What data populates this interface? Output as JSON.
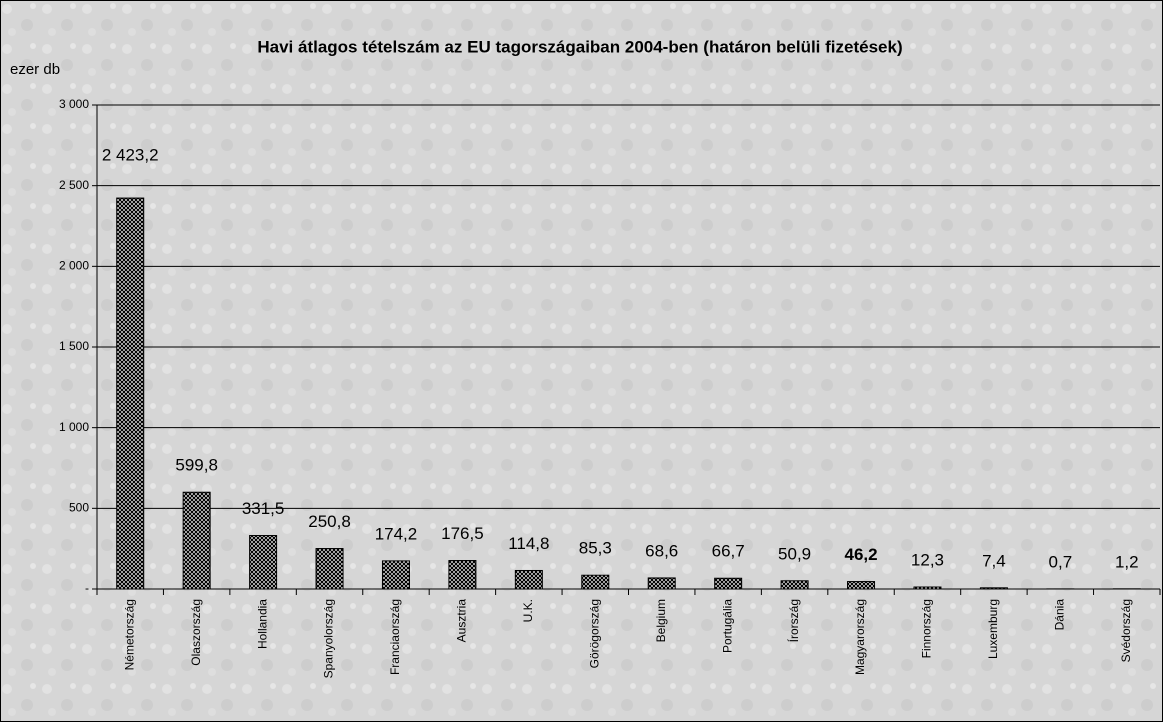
{
  "chart_data": {
    "type": "bar",
    "title": "Havi átlagos tételszám az EU tagországaiban 2004-ben (határon belüli fizetések)",
    "y_label": "ezer db",
    "categories": [
      "Németország",
      "Olaszország",
      "Hollandia",
      "Spanyolország",
      "Franciaország",
      "Ausztria",
      "U.K.",
      "Görögország",
      "Belgium",
      "Portugália",
      "Írország",
      "Magyarország",
      "Finnország",
      "Luxemburg",
      "Dánia",
      "Svédország"
    ],
    "values": [
      2423.2,
      599.8,
      331.5,
      250.8,
      174.2,
      176.5,
      114.8,
      85.3,
      68.6,
      66.7,
      50.9,
      46.2,
      12.3,
      7.4,
      0.7,
      1.2
    ],
    "value_labels": [
      "2 423,2",
      "599,8",
      "331,5",
      "250,8",
      "174,2",
      "176,5",
      "114,8",
      "85,3",
      "68,6",
      "66,7",
      "50,9",
      "46,2",
      "12,3",
      "7,4",
      "0,7",
      "1,2"
    ],
    "highlight": "Magyarország",
    "color": "#000000",
    "ylim": [
      0,
      3000
    ],
    "yticks": [
      {
        "value": 0,
        "label": "-"
      },
      500,
      {
        "value": 1000,
        "label": "1 000"
      },
      {
        "value": 1500,
        "label": "1 500"
      },
      {
        "value": 2000,
        "label": "2 000"
      },
      {
        "value": 2500,
        "label": "2 500"
      },
      {
        "value": 3000,
        "label": "3 000"
      }
    ],
    "grid": true
  }
}
